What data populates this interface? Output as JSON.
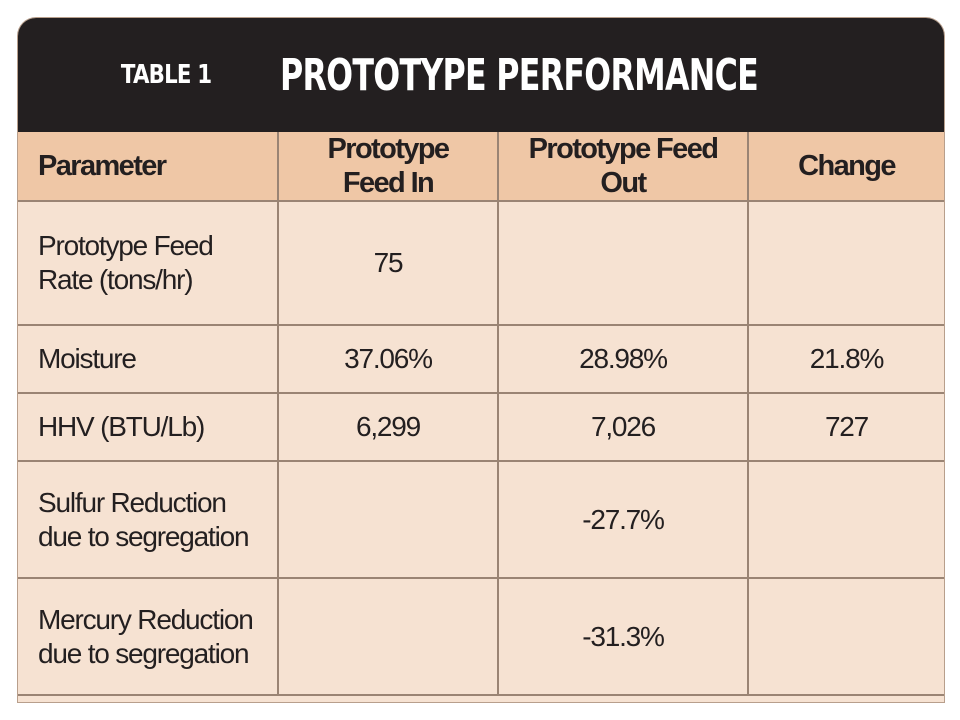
{
  "title": {
    "label": "TABLE 1",
    "text": "PROTOTYPE PERFORMANCE"
  },
  "columns": [
    "Parameter",
    "Prototype Feed In",
    "Prototype Feed Out",
    "Change"
  ],
  "rows": [
    [
      "Prototype Feed Rate (tons/hr)",
      "75",
      "",
      ""
    ],
    [
      "Moisture",
      "37.06%",
      "28.98%",
      "21.8%"
    ],
    [
      "HHV (BTU/Lb)",
      "6,299",
      "7,026",
      "727"
    ],
    [
      "Sulfur Reduction due to segregation",
      "",
      "-27.7%",
      ""
    ],
    [
      "Mercury Reduction due to segregation",
      "",
      "-31.3%",
      ""
    ]
  ],
  "colors": {
    "title_bg": "#231f20",
    "header_bg": "#efc7a6",
    "body_bg": "#f6e2d2",
    "grid": "#9a8474"
  }
}
